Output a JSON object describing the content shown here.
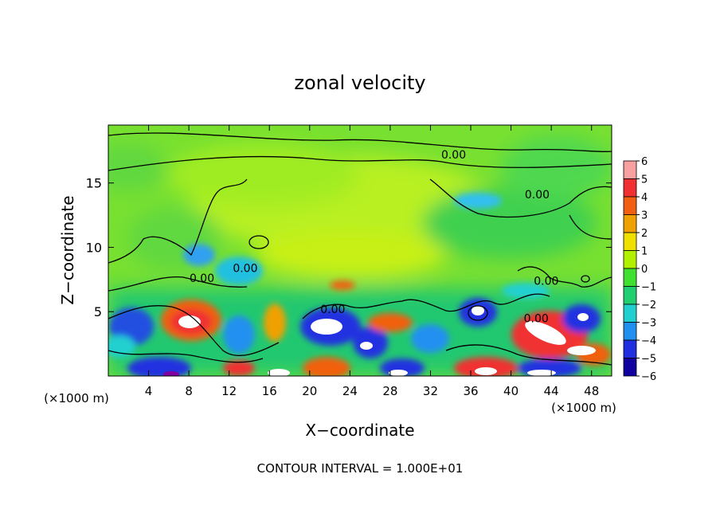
{
  "chart_data": {
    "type": "heatmap",
    "title": "zonal velocity",
    "xlabel": "X−coordinate",
    "ylabel": "Z−coordinate",
    "x_unit_left": "(×1000 m)",
    "x_unit_right": "(×1000 m)",
    "footer": "CONTOUR INTERVAL = 1.000E+01",
    "xlim": [
      0,
      50
    ],
    "ylim": [
      0,
      19.5
    ],
    "x_ticks": [
      4,
      8,
      12,
      16,
      20,
      24,
      28,
      32,
      36,
      40,
      44,
      48
    ],
    "y_ticks": [
      5,
      10,
      15
    ],
    "colorbar": {
      "min": -6,
      "max": 6,
      "tick_labels": [
        "6",
        "5",
        "4",
        "3",
        "2",
        "1",
        "0",
        "−1",
        "−2",
        "−3",
        "−4",
        "−5",
        "−6"
      ],
      "colors": [
        "#f9a0a0",
        "#f03030",
        "#f06010",
        "#f0a000",
        "#f0e000",
        "#b0f000",
        "#40e030",
        "#20d070",
        "#20d0d0",
        "#2090f0",
        "#2030e0",
        "#1000a0"
      ]
    },
    "contour_labels": [
      {
        "text": "0.00",
        "x": 34.3,
        "z": 17.2
      },
      {
        "text": "0.00",
        "x": 42.6,
        "z": 14.1
      },
      {
        "text": "0.00",
        "x": 13.6,
        "z": 8.4
      },
      {
        "text": "0.00",
        "x": 9.3,
        "z": 7.6
      },
      {
        "text": "0.00",
        "x": 43.5,
        "z": 7.4
      },
      {
        "text": "0.00",
        "x": 22.3,
        "z": 5.2
      },
      {
        "text": "0.00",
        "x": 42.5,
        "z": 4.5
      }
    ]
  }
}
